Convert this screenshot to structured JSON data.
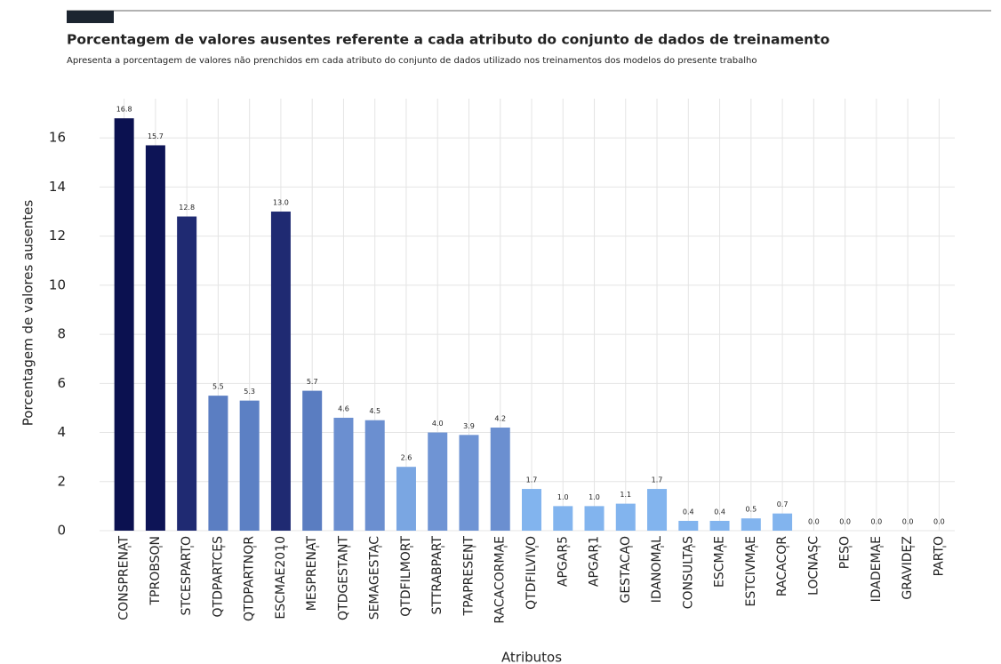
{
  "chart_data": {
    "type": "bar",
    "title": "Porcentagem de valores ausentes referente a cada atributo do conjunto de dados de treinamento",
    "subtitle": "Apresenta a porcentagem de valores não prenchidos em cada atributo do conjunto de dados utilizado nos treinamentos dos modelos do presente trabalho",
    "x_label": "Atributos",
    "y_label": "Porcentagem de valores ausentes",
    "categories": [
      "CONSPRENAT",
      "TPROBSON",
      "STCESPARTO",
      "QTDPARTCES",
      "QTDPARTNOR",
      "ESCMAE2010",
      "MESPRENAT",
      "QTDGESTANT",
      "SEMAGESTAC",
      "QTDFILMORT",
      "STTRABPART",
      "TPAPRESENT",
      "RACACORMAE",
      "QTDFILVIVO",
      "APGAR5",
      "APGAR1",
      "GESTACAO",
      "IDANOMAL",
      "CONSULTAS",
      "ESCMAE",
      "ESTCIVMAE",
      "RACACOR",
      "LOCNASC",
      "PESO",
      "IDADEMAE",
      "GRAVIDEZ",
      "PARTO"
    ],
    "values": [
      16.8,
      15.7,
      12.8,
      5.5,
      5.3,
      13.0,
      5.7,
      4.6,
      4.5,
      2.6,
      4.0,
      3.9,
      4.2,
      1.7,
      1.0,
      1.0,
      1.1,
      1.7,
      0.4,
      0.4,
      0.5,
      0.7,
      0.0,
      0.0,
      0.0,
      0.0,
      0.0
    ],
    "value_labels": [
      "16.8",
      "15.7",
      "12.8",
      "5.5",
      "5.3",
      "13.0",
      "5.7",
      "4.6",
      "4.5",
      "2.6",
      "4.0",
      "3.9",
      "4.2",
      "1.7",
      "1.0",
      "1.0",
      "1.1",
      "1.7",
      "0.4",
      "0.4",
      "0.5",
      "0.7",
      "0.0",
      "0.0",
      "0.0",
      "0.0",
      "0.0"
    ],
    "colors": [
      "#0b1150",
      "#0d1456",
      "#1f2a72",
      "#5b7ec2",
      "#5c80c4",
      "#1f2a72",
      "#5a7dc1",
      "#6b8fd0",
      "#6b8fd0",
      "#7aa6e2",
      "#6f94d4",
      "#6f94d4",
      "#6b8fd0",
      "#82b4ee",
      "#82b4ee",
      "#82b4ee",
      "#82b4ee",
      "#82b4ee",
      "#82b4ee",
      "#82b4ee",
      "#82b4ee",
      "#82b4ee",
      "#82b4ee",
      "#82b4ee",
      "#82b4ee",
      "#82b4ee",
      "#82b4ee"
    ],
    "ylim": [
      0,
      17.6
    ],
    "yticks": [
      0,
      2,
      4,
      6,
      8,
      10,
      12,
      14,
      16
    ],
    "grid": true
  }
}
